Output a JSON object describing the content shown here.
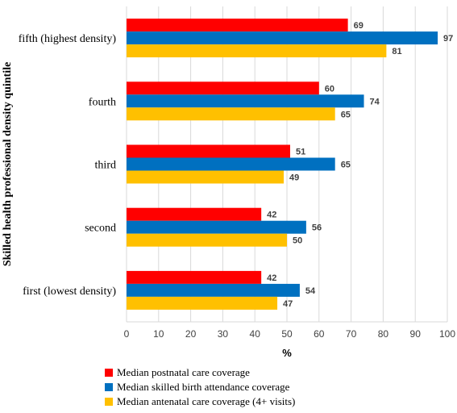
{
  "chart_data": {
    "type": "bar",
    "orientation": "horizontal",
    "categories": [
      "fifth (highest density)",
      "fourth",
      "third",
      "second",
      "first (lowest density)"
    ],
    "series": [
      {
        "name": "Median postnatal care coverage",
        "color": "#ff0000",
        "values": [
          69,
          60,
          51,
          42,
          42
        ]
      },
      {
        "name": "Median skilled birth attendance coverage",
        "color": "#0070c0",
        "values": [
          97,
          74,
          65,
          56,
          54
        ]
      },
      {
        "name": "Median antenatal care coverage (4+ visits)",
        "color": "#ffc000",
        "values": [
          81,
          65,
          49,
          50,
          47
        ]
      }
    ],
    "display_values": [
      [
        69,
        60,
        51,
        42,
        42
      ],
      [
        97,
        74,
        65,
        56,
        54
      ],
      [
        81,
        65,
        49,
        50,
        47
      ]
    ],
    "xlabel": "%",
    "ylabel": "Skilled health professional density quintile",
    "xlim": [
      0,
      100
    ],
    "xticks": [
      "0",
      "10",
      "20",
      "30",
      "40",
      "50",
      "60",
      "70",
      "80",
      "90",
      "100"
    ],
    "grid": true,
    "legend_position": "bottom-left"
  }
}
